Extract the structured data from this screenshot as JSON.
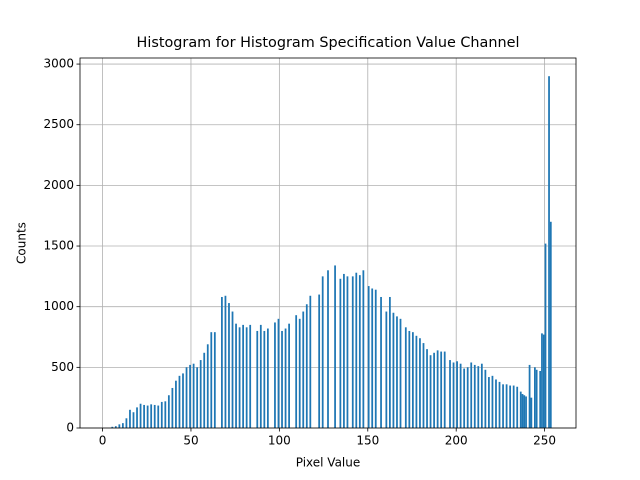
{
  "chart_data": {
    "type": "histogram",
    "title": "Histogram for Histogram Specification Value Channel",
    "x_label": "Pixel Value",
    "y_label": "Counts",
    "color": "#1f77b4",
    "grid": true,
    "xlim": [
      -12.75,
      267.75
    ],
    "ylim": [
      0,
      3050
    ],
    "xticks": [
      0,
      50,
      100,
      150,
      200,
      250
    ],
    "yticks": [
      0,
      500,
      1000,
      1500,
      2000,
      2500,
      3000
    ],
    "bins": [
      0,
      1,
      2,
      3,
      4,
      5,
      6,
      7,
      8,
      9,
      10,
      11,
      12,
      13,
      14,
      15,
      16,
      17,
      18,
      19,
      20,
      21,
      22,
      23,
      24,
      25,
      26,
      27,
      28,
      29,
      30,
      31,
      32,
      33,
      34,
      35,
      36,
      37,
      38,
      39,
      40,
      41,
      42,
      43,
      44,
      45,
      46,
      47,
      48,
      49,
      50,
      51,
      52,
      53,
      54,
      55,
      56,
      57,
      58,
      59,
      60,
      61,
      62,
      63,
      64,
      65,
      66,
      67,
      68,
      69,
      70,
      71,
      72,
      73,
      74,
      75,
      76,
      77,
      78,
      79,
      80,
      81,
      82,
      83,
      84,
      85,
      86,
      87,
      88,
      89,
      90,
      91,
      92,
      93,
      94,
      95,
      96,
      97,
      98,
      99,
      100,
      101,
      102,
      103,
      104,
      105,
      106,
      107,
      108,
      109,
      110,
      111,
      112,
      113,
      114,
      115,
      116,
      117,
      118,
      119,
      120,
      121,
      122,
      123,
      124,
      125,
      126,
      127,
      128,
      129,
      130,
      131,
      132,
      133,
      134,
      135,
      136,
      137,
      138,
      139,
      140,
      141,
      142,
      143,
      144,
      145,
      146,
      147,
      148,
      149,
      150,
      151,
      152,
      153,
      154,
      155,
      156,
      157,
      158,
      159,
      160,
      161,
      162,
      163,
      164,
      165,
      166,
      167,
      168,
      169,
      170,
      171,
      172,
      173,
      174,
      175,
      176,
      177,
      178,
      179,
      180,
      181,
      182,
      183,
      184,
      185,
      186,
      187,
      188,
      189,
      190,
      191,
      192,
      193,
      194,
      195,
      196,
      197,
      198,
      199,
      200,
      201,
      202,
      203,
      204,
      205,
      206,
      207,
      208,
      209,
      210,
      211,
      212,
      213,
      214,
      215,
      216,
      217,
      218,
      219,
      220,
      221,
      222,
      223,
      224,
      225,
      226,
      227,
      228,
      229,
      230,
      231,
      232,
      233,
      234,
      235,
      236,
      237,
      238,
      239,
      240,
      241,
      242,
      243,
      244,
      245,
      246,
      247,
      248,
      249,
      250,
      251,
      252,
      253,
      254,
      255,
      256
    ],
    "counts": [
      0,
      0,
      0,
      0,
      0,
      10,
      0,
      15,
      0,
      30,
      0,
      40,
      0,
      80,
      0,
      150,
      0,
      130,
      0,
      170,
      0,
      200,
      0,
      190,
      0,
      185,
      0,
      195,
      0,
      190,
      0,
      185,
      0,
      215,
      0,
      220,
      0,
      270,
      0,
      330,
      0,
      390,
      0,
      430,
      0,
      450,
      0,
      500,
      0,
      520,
      0,
      530,
      0,
      500,
      0,
      560,
      0,
      620,
      0,
      690,
      0,
      790,
      0,
      790,
      0,
      0,
      0,
      1080,
      0,
      1090,
      0,
      1030,
      0,
      960,
      0,
      860,
      0,
      830,
      0,
      850,
      0,
      830,
      0,
      850,
      0,
      0,
      0,
      800,
      0,
      850,
      0,
      800,
      0,
      820,
      0,
      0,
      0,
      870,
      0,
      900,
      0,
      800,
      0,
      820,
      0,
      860,
      0,
      0,
      0,
      930,
      0,
      900,
      0,
      960,
      0,
      1020,
      0,
      1090,
      0,
      0,
      0,
      0,
      1100,
      0,
      1250,
      0,
      0,
      1300,
      0,
      0,
      0,
      1340,
      0,
      0,
      1230,
      0,
      1270,
      0,
      1250,
      0,
      0,
      1250,
      0,
      1280,
      0,
      1260,
      0,
      1300,
      0,
      0,
      1170,
      0,
      1150,
      0,
      1140,
      0,
      0,
      1080,
      0,
      0,
      960,
      0,
      1080,
      0,
      950,
      0,
      920,
      0,
      900,
      0,
      0,
      830,
      0,
      800,
      0,
      790,
      0,
      760,
      0,
      740,
      0,
      700,
      0,
      650,
      0,
      600,
      0,
      620,
      0,
      640,
      0,
      630,
      0,
      630,
      0,
      0,
      560,
      0,
      540,
      0,
      550,
      0,
      530,
      0,
      490,
      0,
      500,
      0,
      540,
      0,
      520,
      0,
      510,
      0,
      530,
      0,
      480,
      0,
      420,
      0,
      430,
      0,
      400,
      0,
      380,
      0,
      360,
      0,
      360,
      0,
      350,
      0,
      350,
      0,
      340,
      0,
      300,
      280,
      270,
      260,
      0,
      520,
      250,
      0,
      500,
      480,
      0,
      470,
      780,
      770,
      1520,
      0,
      2900,
      1700,
      0,
      0
    ]
  }
}
